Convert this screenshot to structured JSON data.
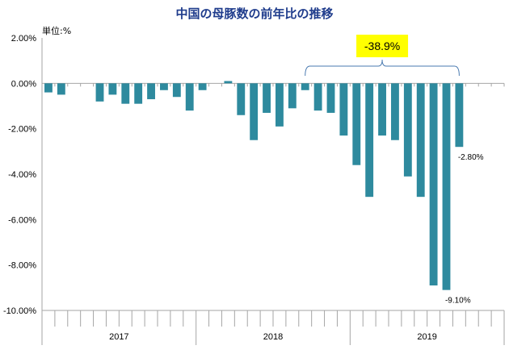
{
  "chart_data": {
    "type": "bar",
    "title": "中国の母豚数の前年比の推移",
    "unit_label": "単位:%",
    "ylim": [
      -10,
      2
    ],
    "yticks": [
      2,
      0,
      -2,
      -4,
      -6,
      -8,
      -10
    ],
    "ytick_labels": [
      "2.00%",
      "0.00%",
      "-2.00%",
      "-4.00%",
      "-6.00%",
      "-8.00%",
      "-10.00%"
    ],
    "years": [
      "2017",
      "2018",
      "2019"
    ],
    "months_per_year": 12,
    "values": [
      -0.4,
      -0.5,
      null,
      null,
      -0.8,
      -0.5,
      -0.9,
      -0.9,
      -0.7,
      -0.3,
      -0.6,
      -1.2,
      -0.3,
      null,
      0.1,
      -1.4,
      -2.5,
      -1.3,
      -1.9,
      -1.1,
      -0.3,
      -1.2,
      -1.3,
      -2.3,
      -3.6,
      -5.0,
      -2.3,
      -2.5,
      -4.1,
      -5.0,
      -8.9,
      -9.1,
      -2.8,
      null,
      null,
      null
    ],
    "data_labels": [
      {
        "index": 31,
        "text": "-9.10%"
      },
      {
        "index": 32,
        "text": "-2.80%"
      }
    ],
    "callout": {
      "text": "-38.9%",
      "from_index": 20,
      "to_index": 32
    },
    "grid": false,
    "colors": {
      "bar": "#2e8a9e",
      "title": "#1f3c8c",
      "callout_bg": "#ffff00",
      "axis": "#a6a6a6",
      "brace": "#4a7ab0"
    }
  }
}
